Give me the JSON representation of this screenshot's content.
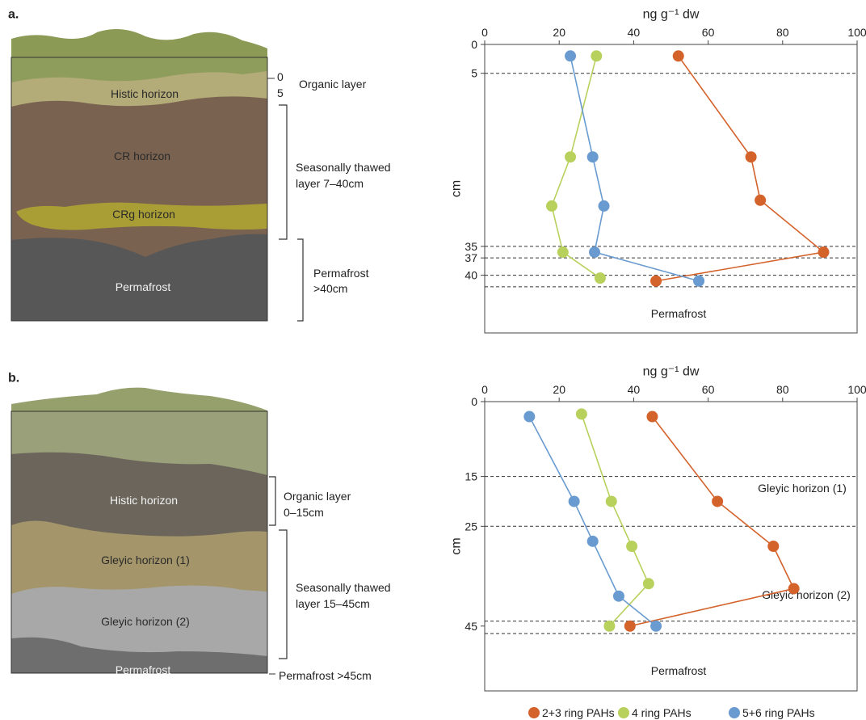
{
  "profiles": [
    {
      "label": "a.",
      "layers": [
        "Histic horizon",
        "CR horizon",
        "CRg horizon",
        "Permafrost"
      ],
      "depth_labels": [
        "0",
        "5"
      ],
      "zones": [
        [
          "Organic layer"
        ],
        [
          "Seasonally thawed",
          "layer 7–40cm"
        ],
        [
          "Permafrost",
          ">40cm"
        ]
      ]
    },
    {
      "label": "b.",
      "layers": [
        "Histic horizon",
        "Gleyic horizon (1)",
        "Gleyic horizon (2)",
        "Permafrost"
      ],
      "zones": [
        [
          "Organic layer",
          "0–15cm"
        ],
        [
          "Seasonally thawed",
          "layer 15–45cm"
        ],
        [
          "Permafrost >45cm"
        ]
      ]
    }
  ],
  "chart_data": [
    {
      "type": "line",
      "xlabel": "ng g⁻¹ dw",
      "ylabel": "cm",
      "xlim": [
        0,
        100
      ],
      "xticks": [
        0,
        20,
        40,
        60,
        80,
        100
      ],
      "ylim": [
        0,
        50
      ],
      "yticks": [
        0,
        5,
        35,
        37,
        40
      ],
      "inverted_y": true,
      "hlines": [
        5,
        35,
        37,
        40,
        42
      ],
      "annotations": [
        "Permafrost"
      ],
      "series": [
        {
          "color": "#d4622b",
          "x": [
            52,
            71.5,
            74,
            91,
            46
          ],
          "y": [
            2,
            19.5,
            27,
            36,
            41
          ]
        },
        {
          "color": "#b8d15c",
          "x": [
            30,
            23,
            18,
            21,
            31
          ],
          "y": [
            2,
            19.5,
            28,
            36,
            40.5
          ]
        },
        {
          "color": "#6a9bd0",
          "x": [
            23,
            29,
            32,
            29.5,
            57.5
          ],
          "y": [
            2,
            19.5,
            28,
            36,
            41
          ]
        }
      ]
    },
    {
      "type": "line",
      "xlabel": "ng g⁻¹ dw",
      "ylabel": "cm",
      "xlim": [
        0,
        100
      ],
      "xticks": [
        0,
        20,
        40,
        60,
        80,
        100
      ],
      "ylim": [
        0,
        58
      ],
      "yticks": [
        0,
        15,
        25,
        45
      ],
      "inverted_y": true,
      "hlines": [
        15,
        25,
        44,
        46.5
      ],
      "annotations": [
        "Gleyic horizon (1)",
        "Gleyic horizon (2)",
        "Permafrost"
      ],
      "series": [
        {
          "name": "2+3 ring PAHs",
          "color": "#d4622b",
          "x": [
            45,
            62.5,
            77.5,
            83,
            39
          ],
          "y": [
            3,
            20,
            29,
            37.5,
            45
          ]
        },
        {
          "name": "4 ring PAHs",
          "color": "#b8d15c",
          "x": [
            26,
            34,
            39.5,
            44,
            33.5
          ],
          "y": [
            2.5,
            20,
            29,
            36.5,
            45
          ]
        },
        {
          "name": "5+6 ring PAHs",
          "color": "#6a9bd0",
          "x": [
            12,
            24,
            29,
            36,
            46
          ],
          "y": [
            3,
            20,
            28,
            39,
            45
          ]
        }
      ]
    }
  ]
}
